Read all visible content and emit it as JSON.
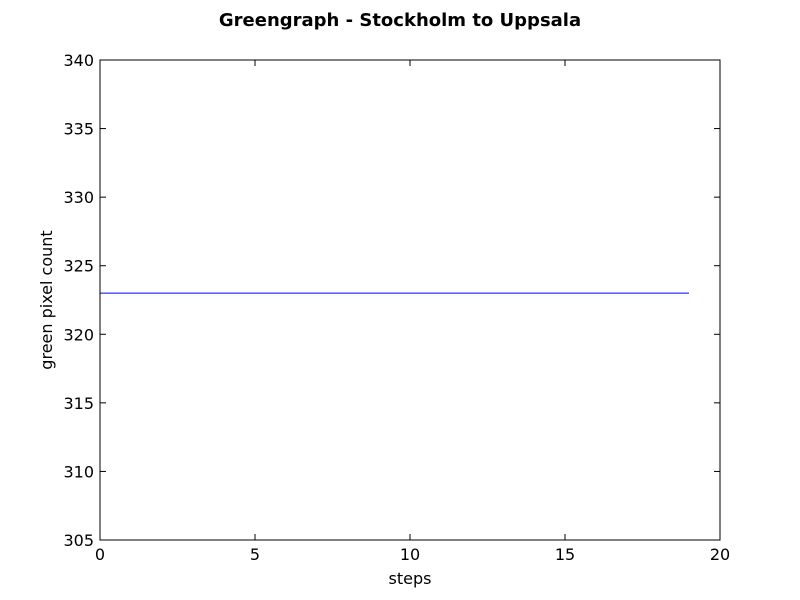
{
  "chart_data": {
    "type": "line",
    "title": "Greengraph - Stockholm to Uppsala",
    "xlabel": "steps",
    "ylabel": "green pixel count",
    "xlim": [
      0,
      20
    ],
    "ylim": [
      305,
      340
    ],
    "x_ticks": [
      0,
      5,
      10,
      15,
      20
    ],
    "y_ticks": [
      305,
      310,
      315,
      320,
      325,
      330,
      335,
      340
    ],
    "grid": false,
    "series": [
      {
        "color": "#0000ff",
        "x": [
          0,
          1,
          2,
          3,
          4,
          5,
          6,
          7,
          8,
          9,
          10,
          11,
          12,
          13,
          14,
          15,
          16,
          17,
          18,
          19
        ],
        "values": [
          323,
          323,
          323,
          323,
          323,
          323,
          323,
          323,
          323,
          323,
          323,
          323,
          323,
          323,
          323,
          323,
          323,
          323,
          323,
          323
        ]
      }
    ]
  }
}
